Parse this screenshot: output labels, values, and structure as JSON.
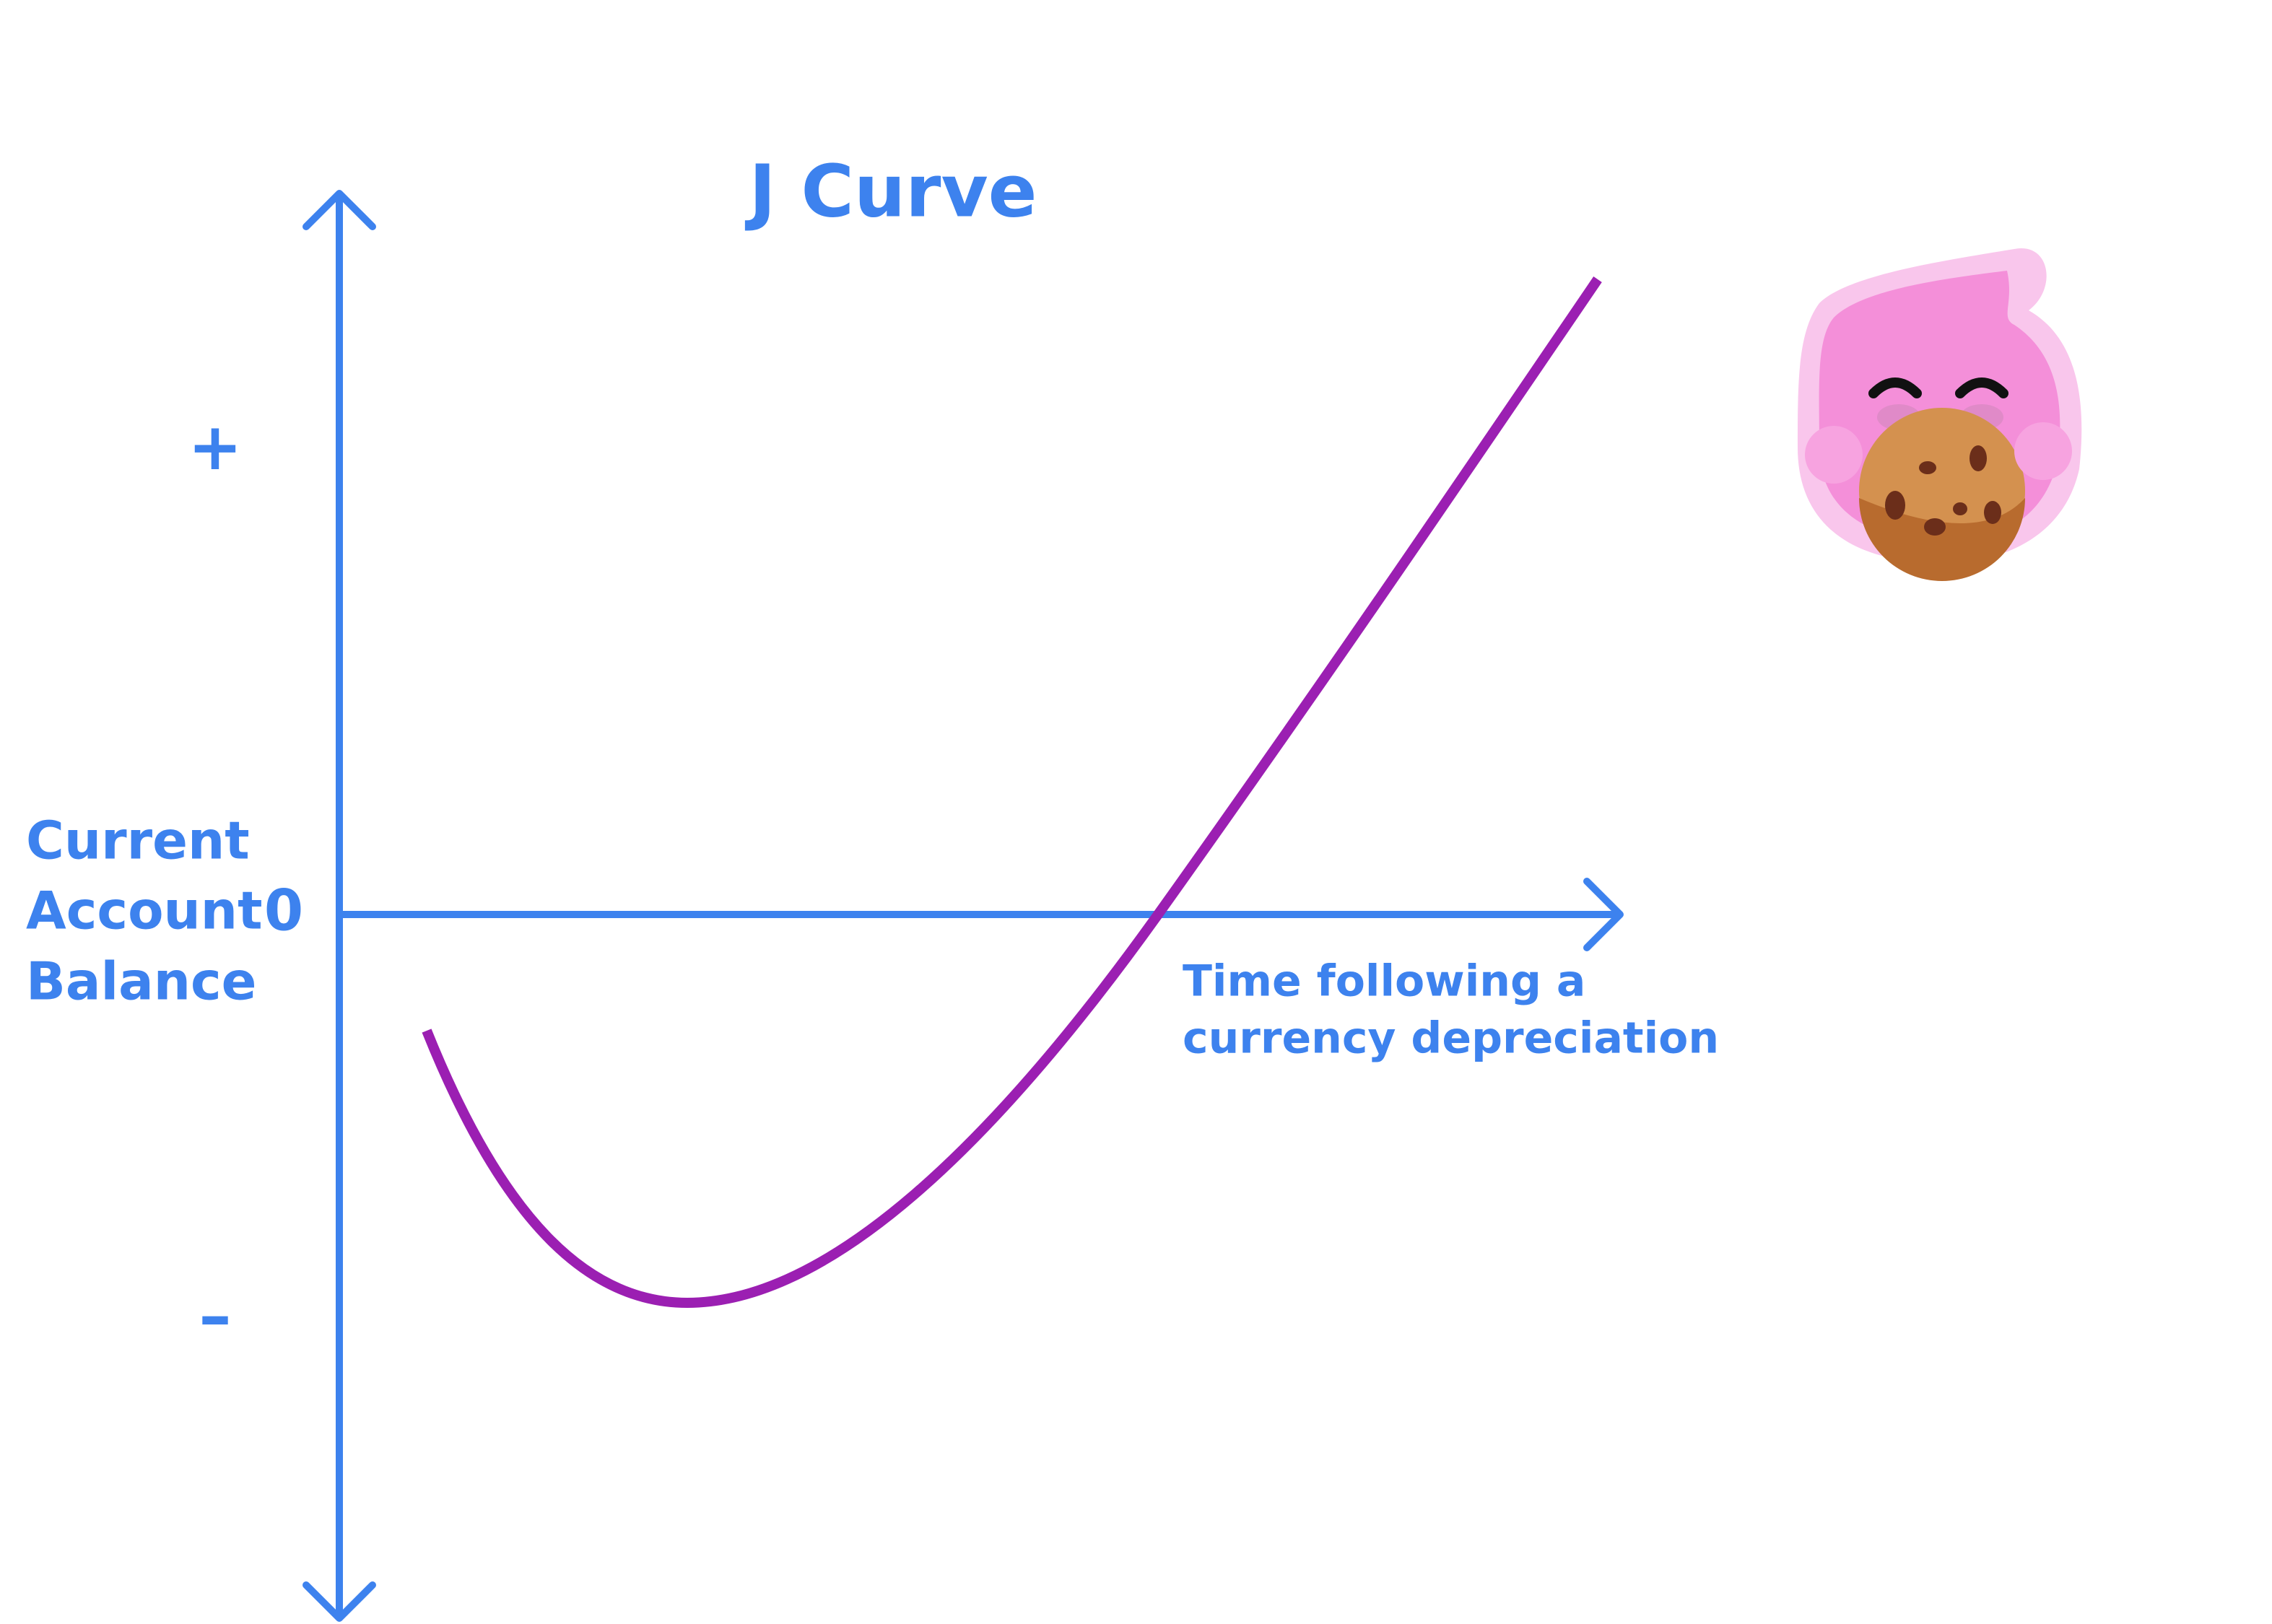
{
  "title": "J Curve",
  "y_axis": {
    "label_lines": [
      "Current",
      "Account",
      "Balance"
    ],
    "plus": "+",
    "zero": "0",
    "minus": "–"
  },
  "x_axis": {
    "label_lines": [
      "Time following a",
      "currency depreciation"
    ]
  }
}
